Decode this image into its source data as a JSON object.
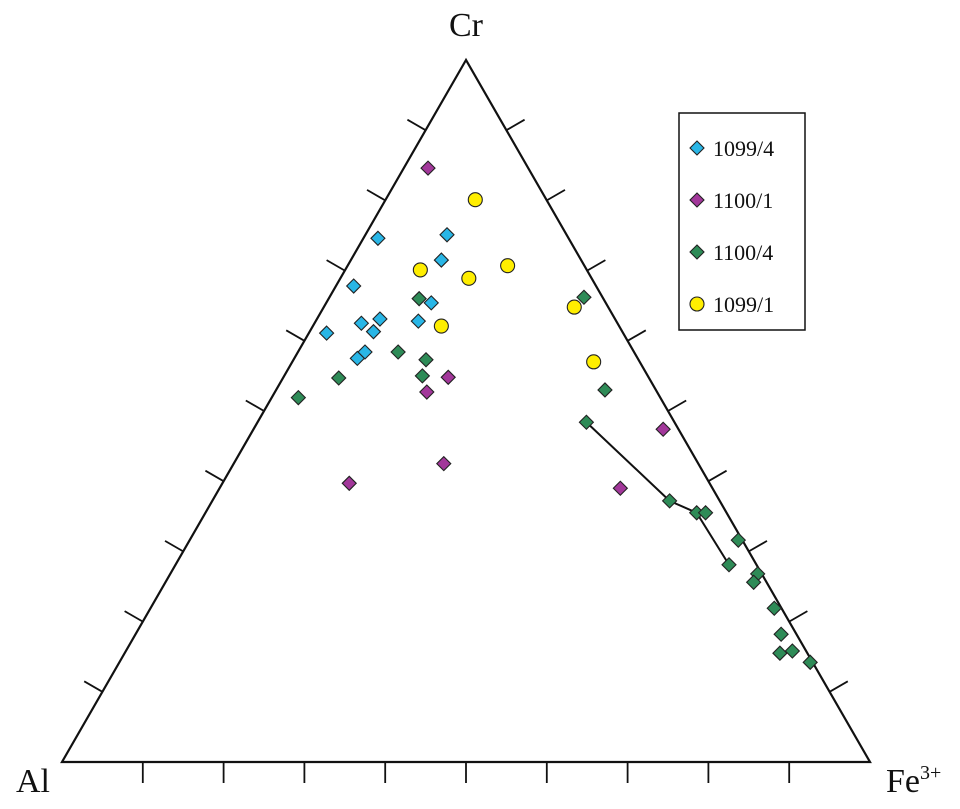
{
  "chart_data": {
    "type": "scatter",
    "subtype": "ternary",
    "vertices": {
      "top": "Cr",
      "left": "Al",
      "right": "Fe",
      "right_superscript": "3+"
    },
    "units": "percent (Cr + Al + Fe3+ = 100)",
    "tick_divisions": 10,
    "grid": false,
    "legend_position": "top-right",
    "colors": {
      "1099/4": "#29b6e6",
      "1100/1": "#a2379a",
      "1100/4": "#2e8b57",
      "1099/1": "#ffee00"
    },
    "series": [
      {
        "name": "1099/4",
        "marker": "diamond",
        "points": [
          {
            "Cr": 74.6,
            "Al": 23.6,
            "Fe": 1.8
          },
          {
            "Cr": 75.1,
            "Al": 14.8,
            "Fe": 10.1
          },
          {
            "Cr": 71.5,
            "Al": 17.3,
            "Fe": 11.2
          },
          {
            "Cr": 67.8,
            "Al": 30.0,
            "Fe": 2.2
          },
          {
            "Cr": 65.4,
            "Al": 21.6,
            "Fe": 13.0
          },
          {
            "Cr": 63.1,
            "Al": 29.1,
            "Fe": 7.8
          },
          {
            "Cr": 62.5,
            "Al": 31.7,
            "Fe": 5.8
          },
          {
            "Cr": 62.8,
            "Al": 24.5,
            "Fe": 12.7
          },
          {
            "Cr": 61.3,
            "Al": 30.8,
            "Fe": 7.9
          },
          {
            "Cr": 61.1,
            "Al": 36.7,
            "Fe": 2.2
          },
          {
            "Cr": 58.4,
            "Al": 33.3,
            "Fe": 8.3
          },
          {
            "Cr": 57.5,
            "Al": 34.7,
            "Fe": 7.8
          }
        ]
      },
      {
        "name": "1100/1",
        "marker": "diamond",
        "points": [
          {
            "Cr": 84.6,
            "Al": 12.4,
            "Fe": 3.0
          },
          {
            "Cr": 54.8,
            "Al": 24.8,
            "Fe": 20.4
          },
          {
            "Cr": 52.7,
            "Al": 28.5,
            "Fe": 18.8
          },
          {
            "Cr": 42.5,
            "Al": 31.5,
            "Fe": 26.0
          },
          {
            "Cr": 39.7,
            "Al": 44.6,
            "Fe": 15.7
          },
          {
            "Cr": 47.4,
            "Al": 1.9,
            "Fe": 50.7
          },
          {
            "Cr": 39.0,
            "Al": 11.4,
            "Fe": 49.6
          }
        ]
      },
      {
        "name": "1100/4",
        "marker": "diamond",
        "points": [
          {
            "Cr": 66.0,
            "Al": 22.8,
            "Fe": 11.2
          },
          {
            "Cr": 58.4,
            "Al": 29.2,
            "Fe": 12.4
          },
          {
            "Cr": 57.3,
            "Al": 26.3,
            "Fe": 16.4
          },
          {
            "Cr": 55.0,
            "Al": 27.9,
            "Fe": 17.1
          },
          {
            "Cr": 54.7,
            "Al": 38.4,
            "Fe": 6.9
          },
          {
            "Cr": 51.9,
            "Al": 44.8,
            "Fe": 3.3
          },
          {
            "Cr": 66.2,
            "Al": 2.3,
            "Fe": 31.5
          },
          {
            "Cr": 53.0,
            "Al": 6.3,
            "Fe": 40.7
          },
          {
            "Cr": 48.4,
            "Al": 10.9,
            "Fe": 40.7
          },
          {
            "Cr": 37.2,
            "Al": 6.2,
            "Fe": 56.6
          },
          {
            "Cr": 35.5,
            "Al": 3.7,
            "Fe": 60.8
          },
          {
            "Cr": 35.5,
            "Al": 2.6,
            "Fe": 61.9
          },
          {
            "Cr": 31.6,
            "Al": 0.5,
            "Fe": 67.9
          },
          {
            "Cr": 28.1,
            "Al": 3.4,
            "Fe": 68.5
          },
          {
            "Cr": 26.8,
            "Al": 0.5,
            "Fe": 72.7
          },
          {
            "Cr": 25.6,
            "Al": 1.6,
            "Fe": 72.8
          },
          {
            "Cr": 21.9,
            "Al": 0.9,
            "Fe": 77.2
          },
          {
            "Cr": 18.2,
            "Al": 1.9,
            "Fe": 79.9
          },
          {
            "Cr": 15.5,
            "Al": 3.4,
            "Fe": 81.1
          },
          {
            "Cr": 15.8,
            "Al": 1.7,
            "Fe": 82.4
          },
          {
            "Cr": 14.2,
            "Al": 0.3,
            "Fe": 85.5
          }
        ]
      },
      {
        "name": "1099/1",
        "marker": "circle",
        "points": [
          {
            "Cr": 80.1,
            "Al": 8.8,
            "Fe": 11.1
          },
          {
            "Cr": 70.1,
            "Al": 20.6,
            "Fe": 9.3
          },
          {
            "Cr": 68.9,
            "Al": 15.2,
            "Fe": 15.9
          },
          {
            "Cr": 70.7,
            "Al": 9.5,
            "Fe": 19.8
          },
          {
            "Cr": 62.1,
            "Al": 22.0,
            "Fe": 15.9
          },
          {
            "Cr": 64.8,
            "Al": 4.2,
            "Fe": 31.0
          },
          {
            "Cr": 57.0,
            "Al": 5.7,
            "Fe": 37.3
          }
        ]
      }
    ],
    "trend_line": {
      "series": "1100/4",
      "points": [
        {
          "Cr": 48.4,
          "Al": 10.9,
          "Fe": 40.7
        },
        {
          "Cr": 37.2,
          "Al": 6.2,
          "Fe": 56.6
        },
        {
          "Cr": 35.5,
          "Al": 3.7,
          "Fe": 60.8
        },
        {
          "Cr": 28.1,
          "Al": 3.4,
          "Fe": 68.5
        }
      ]
    },
    "legend": [
      "1099/4",
      "1100/1",
      "1100/4",
      "1099/1"
    ]
  }
}
